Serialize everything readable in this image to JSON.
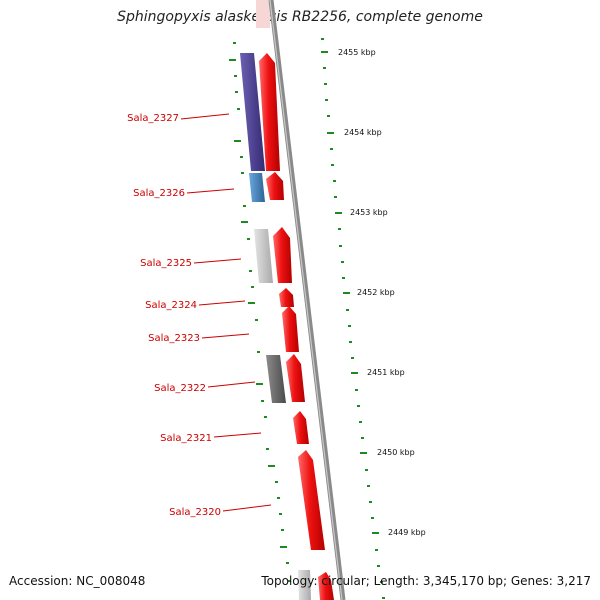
{
  "title": "Sphingopyxis alaskensis RB2256, complete genome",
  "footer": {
    "accession": "Accession: NC_008048",
    "summary": "Topology: circular; Length: 3,345,170 bp; Genes: 3,217"
  },
  "gene_labels": [
    "Sala_2327",
    "Sala_2326",
    "Sala_2325",
    "Sala_2324",
    "Sala_2323",
    "Sala_2322",
    "Sala_2321",
    "Sala_2320"
  ],
  "kbp_labels": [
    "2455 kbp",
    "2454 kbp",
    "2453 kbp",
    "2452 kbp",
    "2451 kbp",
    "2450 kbp",
    "2449 kbp"
  ],
  "colors": {
    "forward": "#ee1111",
    "reverse_a": "#4a3d8f",
    "reverse_b": "#3f7fb8",
    "reverse_c": "#c4c4c4",
    "reverse_d": "#6b6b6b",
    "backbone": "#8a8a8a",
    "ticks": "#1f8a1f",
    "label": "#cc0000"
  }
}
